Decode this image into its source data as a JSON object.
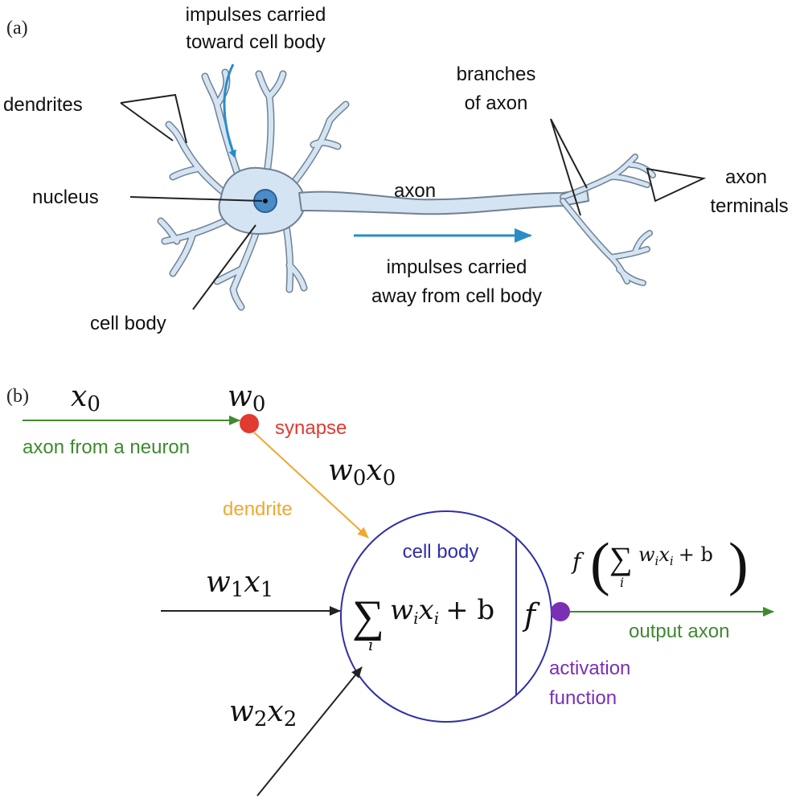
{
  "panel_a": {
    "label": "(a)",
    "impulses_toward_1": "impulses carried",
    "impulses_toward_2": "toward cell body",
    "dendrites": "dendrites",
    "nucleus": "nucleus",
    "cell_body": "cell body",
    "axon": "axon",
    "branches_1": "branches",
    "branches_2": "of axon",
    "terminals_1": "axon",
    "terminals_2": "terminals",
    "impulses_away_1": "impulses carried",
    "impulses_away_2": "away from cell body"
  },
  "panel_b": {
    "label": "(b)",
    "x0_base": "x",
    "x0_sub": "0",
    "w0_base": "w",
    "w0_sub": "0",
    "synapse": "synapse",
    "axon_from_neuron": "axon from a neuron",
    "w0x0": {
      "w": "w",
      "ws": "0",
      "x": "x",
      "xs": "0"
    },
    "dendrite": "dendrite",
    "cell_body": "cell body",
    "w1x1": {
      "w": "w",
      "ws": "1",
      "x": "x",
      "xs": "1"
    },
    "w2x2": {
      "w": "w",
      "ws": "2",
      "x": "x",
      "xs": "2"
    },
    "sum_symbol": "∑",
    "sum_index": "i",
    "sum_term": {
      "w": "w",
      "ws": "i",
      "x": "x",
      "xs": "i",
      "plus_b": "+ b"
    },
    "f_symbol": "f",
    "output_formula": {
      "f": "f",
      "lparen": "(",
      "rparen": ")"
    },
    "output_axon": "output axon",
    "activation_1": "activation",
    "activation_2": "function"
  },
  "colors": {
    "neuron_fill": "#d4e4f3",
    "neuron_stroke": "#6f8193",
    "nucleus_fill": "#4a8cc8",
    "blue_arrow": "#2a8cc7",
    "green": "#3d8a2f",
    "red": "#e03a31",
    "orange": "#f0a830",
    "navy": "#2f2fa8",
    "purple": "#7a2fb5"
  }
}
